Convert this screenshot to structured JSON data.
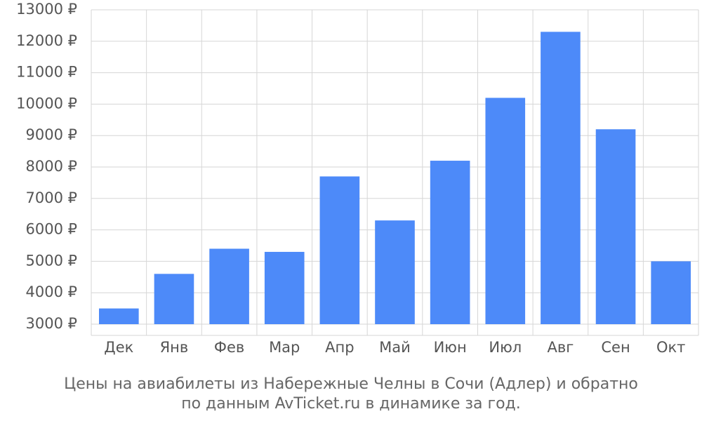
{
  "chart_data": {
    "type": "bar",
    "title": "Цены на авиабилеты из Набережные Челны в Сочи (Адлер) и обратно",
    "subtitle": "по данным AvTicket.ru в динамике за год.",
    "categories": [
      "Дек",
      "Янв",
      "Фев",
      "Мар",
      "Апр",
      "Май",
      "Июн",
      "Июл",
      "Авг",
      "Сен",
      "Окт"
    ],
    "values": [
      3500,
      4600,
      5400,
      5300,
      7700,
      6300,
      8200,
      10200,
      12300,
      9200,
      5000
    ],
    "color": "#4d8af9",
    "ylim": [
      3000,
      13000
    ],
    "yticks": [
      {
        "value": 3000,
        "label": "3000 ₽"
      },
      {
        "value": 4000,
        "label": "4000 ₽"
      },
      {
        "value": 5000,
        "label": "5000 ₽"
      },
      {
        "value": 6000,
        "label": "6000 ₽"
      },
      {
        "value": 7000,
        "label": "7000 ₽"
      },
      {
        "value": 8000,
        "label": "8000 ₽"
      },
      {
        "value": 9000,
        "label": "9000 ₽"
      },
      {
        "value": 10000,
        "label": "10000 ₽"
      },
      {
        "value": 11000,
        "label": "11000 ₽"
      },
      {
        "value": 12000,
        "label": "12000 ₽"
      },
      {
        "value": 13000,
        "label": "13000 ₽"
      }
    ],
    "grid": true
  }
}
